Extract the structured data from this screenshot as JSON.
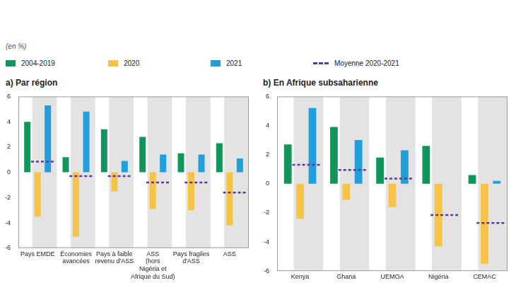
{
  "chart_data": [
    {
      "type": "bar",
      "title": "a) Par région",
      "y_label": "(en %)",
      "categories": [
        [
          "Pays EMDE"
        ],
        [
          "Économies",
          "avancées"
        ],
        [
          "Pays à faible",
          "revenu d'ASS"
        ],
        [
          "ASS",
          "(hors",
          "Nigéria et",
          "Afrique du Sud)"
        ],
        [
          "Pays fragiles",
          "d'ASS"
        ],
        [
          "ASS"
        ]
      ],
      "series": [
        {
          "name": "2004-2019",
          "color": "#10955a",
          "values": [
            4.0,
            1.2,
            3.4,
            2.8,
            1.5,
            2.3
          ]
        },
        {
          "name": "2020",
          "color": "#f6c344",
          "values": [
            -3.5,
            -5.1,
            -1.5,
            -2.9,
            -3.0,
            -4.2
          ]
        },
        {
          "name": "2021",
          "color": "#1f9fdc",
          "values": [
            5.3,
            4.8,
            0.9,
            1.4,
            1.4,
            1.1
          ]
        },
        {
          "name": "Moyenne 2020-2021",
          "color": "#5b3a94",
          "type": "line",
          "line_style": "dashed",
          "values": [
            0.85,
            -0.3,
            -0.3,
            -0.8,
            -0.8,
            -1.6
          ]
        }
      ],
      "ylim": [
        -6,
        6
      ],
      "yticks": [
        -6,
        -4,
        -2,
        0,
        2,
        4,
        6
      ],
      "grid": false,
      "legend": "top"
    },
    {
      "type": "bar",
      "title": "b) En Afrique subsaharienne",
      "categories": [
        [
          "Kenya"
        ],
        [
          "Ghana"
        ],
        [
          "UEMOA"
        ],
        [
          "Nigéria"
        ],
        [
          "CEMAC"
        ]
      ],
      "series": [
        {
          "name": "2004-2019",
          "color": "#10955a",
          "values": [
            2.7,
            3.9,
            1.8,
            2.6,
            0.6
          ]
        },
        {
          "name": "2020",
          "color": "#f6c344",
          "values": [
            -2.4,
            -1.1,
            -1.6,
            -4.3,
            -5.5
          ]
        },
        {
          "name": "2021",
          "color": "#1f9fdc",
          "values": [
            5.2,
            3.0,
            2.3,
            null,
            0.2
          ]
        },
        {
          "name": "Moyenne 2020-2021",
          "color": "#5b3a94",
          "type": "line",
          "line_style": "dashed",
          "values": [
            1.3,
            0.95,
            0.35,
            -2.15,
            -2.7
          ]
        }
      ],
      "ylim": [
        -6,
        6
      ],
      "yticks": [
        -6,
        -4,
        -2,
        0,
        2,
        4,
        6
      ],
      "grid": false,
      "legend": "top"
    }
  ]
}
